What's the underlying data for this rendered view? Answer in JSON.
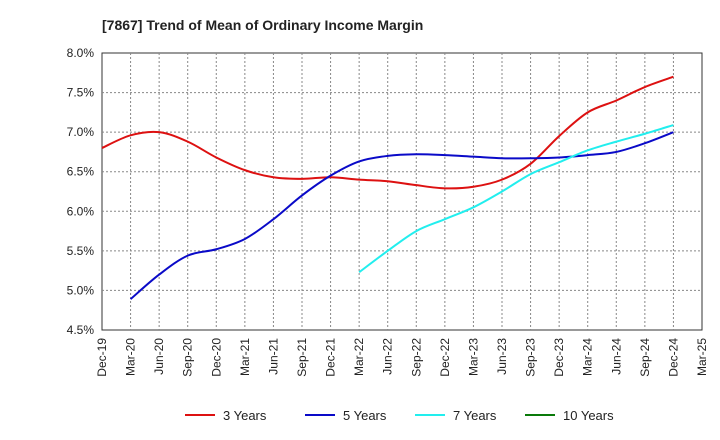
{
  "chart_data": {
    "type": "line",
    "title": "[7867]  Trend of Mean of Ordinary Income Margin",
    "xlabel": "",
    "ylabel": "",
    "categories": [
      "Dec-19",
      "Mar-20",
      "Jun-20",
      "Sep-20",
      "Dec-20",
      "Mar-21",
      "Jun-21",
      "Sep-21",
      "Dec-21",
      "Mar-22",
      "Jun-22",
      "Sep-22",
      "Dec-22",
      "Mar-23",
      "Jun-23",
      "Sep-23",
      "Dec-23",
      "Mar-24",
      "Jun-24",
      "Sep-24",
      "Dec-24",
      "Mar-25"
    ],
    "y_ticks": [
      "4.5%",
      "5.0%",
      "5.5%",
      "6.0%",
      "6.5%",
      "7.0%",
      "7.5%",
      "8.0%"
    ],
    "ylim": [
      4.5,
      8.0
    ],
    "grid": true,
    "legend_position": "bottom",
    "series": [
      {
        "name": "3 Years",
        "color": "#dd1111",
        "values": [
          6.8,
          6.96,
          7.0,
          6.88,
          6.68,
          6.52,
          6.43,
          6.41,
          6.43,
          6.4,
          6.38,
          6.33,
          6.29,
          6.31,
          6.4,
          6.6,
          6.95,
          7.25,
          7.4,
          7.57,
          7.7,
          null
        ]
      },
      {
        "name": "5 Years",
        "color": "#0a0ac8",
        "values": [
          null,
          4.89,
          5.2,
          5.44,
          5.52,
          5.65,
          5.9,
          6.2,
          6.45,
          6.63,
          6.7,
          6.72,
          6.71,
          6.69,
          6.67,
          6.67,
          6.68,
          6.71,
          6.75,
          6.86,
          7.0,
          null
        ]
      },
      {
        "name": "7 Years",
        "color": "#22eeee",
        "values": [
          null,
          null,
          null,
          null,
          null,
          null,
          null,
          null,
          null,
          5.23,
          5.5,
          5.75,
          5.9,
          6.05,
          6.25,
          6.47,
          6.62,
          6.77,
          6.88,
          6.98,
          7.09,
          null
        ]
      },
      {
        "name": "10 Years",
        "color": "#0a7a0a",
        "values": [
          null,
          null,
          null,
          null,
          null,
          null,
          null,
          null,
          null,
          null,
          null,
          null,
          null,
          null,
          null,
          null,
          null,
          null,
          null,
          null,
          null,
          null
        ]
      }
    ]
  }
}
